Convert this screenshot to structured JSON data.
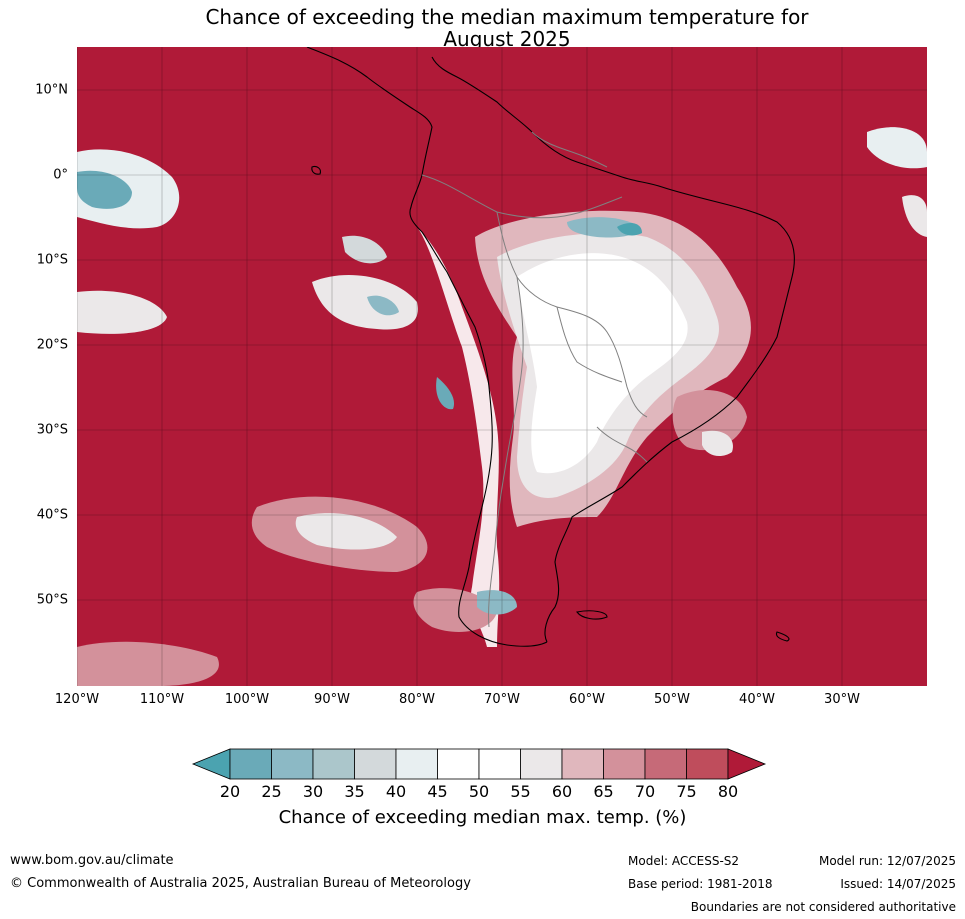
{
  "title": {
    "line1": "Chance of exceeding the median maximum temperature for",
    "line2": "August 2025"
  },
  "map": {
    "ocean_color": "#b01a38",
    "lat_labels": [
      "10°N",
      "0°",
      "10°S",
      "20°S",
      "30°S",
      "40°S",
      "50°S"
    ],
    "lon_labels": [
      "120°W",
      "110°W",
      "100°W",
      "90°W",
      "80°W",
      "70°W",
      "60°W",
      "50°W",
      "40°W",
      "30°W"
    ]
  },
  "legend": {
    "ticks": [
      "20",
      "25",
      "30",
      "35",
      "40",
      "45",
      "50",
      "55",
      "60",
      "65",
      "70",
      "75",
      "80"
    ],
    "colors": [
      "#4ba3b0",
      "#6aaab8",
      "#8cb9c5",
      "#abc6cb",
      "#d3d9db",
      "#e8eff1",
      "#ffffff",
      "#ffffff",
      "#ebe8e9",
      "#e0b7bd",
      "#d3919b",
      "#c66a78",
      "#bf4d5c",
      "#b01a38"
    ],
    "caption": "Chance of exceeding median max. temp. (%)"
  },
  "footer": {
    "website": "www.bom.gov.au/climate",
    "copyright": "© Commonwealth of Australia 2025, Australian Bureau of Meteorology",
    "model": "Model: ACCESS-S2",
    "base_period": "Base period: 1981-2018",
    "model_run": "Model run: 12/07/2025",
    "issued": "Issued: 14/07/2025",
    "disclaimer": "Boundaries are not considered authoritative"
  }
}
